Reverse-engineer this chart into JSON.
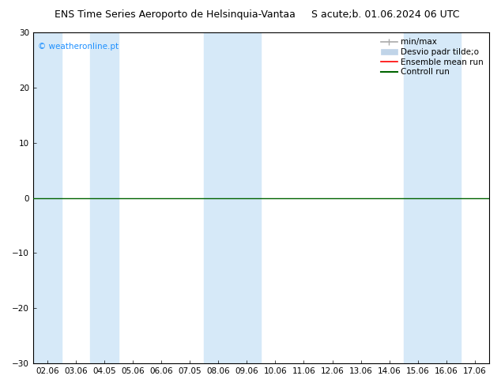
{
  "title_left": "ENS Time Series Aeroporto de Helsinquia-Vantaa",
  "title_right": "S acute;b. 01.06.2024 06 UTC",
  "watermark": "© weatheronline.pt",
  "ylim": [
    -30,
    30
  ],
  "yticks": [
    -30,
    -20,
    -10,
    0,
    10,
    20,
    30
  ],
  "xlabels": [
    "02.06",
    "03.06",
    "04.05",
    "05.06",
    "06.06",
    "07.05",
    "08.06",
    "09.06",
    "10.06",
    "11.06",
    "12.06",
    "13.06",
    "14.06",
    "15.06",
    "16.06",
    "17.06"
  ],
  "x_values": [
    0,
    1,
    2,
    3,
    4,
    5,
    6,
    7,
    8,
    9,
    10,
    11,
    12,
    13,
    14,
    15
  ],
  "band_color": "#d6e9f8",
  "control_run_color": "#006400",
  "ensemble_mean_color": "#ff0000",
  "minmax_color": "#aaaaaa",
  "std_color": "#c0d4e8",
  "background_color": "#ffffff",
  "plot_bg_color": "#ffffff",
  "title_fontsize": 9,
  "tick_fontsize": 7.5,
  "legend_fontsize": 7.5,
  "watermark_color": "#1e90ff",
  "axis_color": "#000000",
  "legend_label_1": "min/max",
  "legend_label_2": "Desvio padr tilde;o",
  "legend_label_3": "Ensemble mean run",
  "legend_label_4": "Controll run"
}
